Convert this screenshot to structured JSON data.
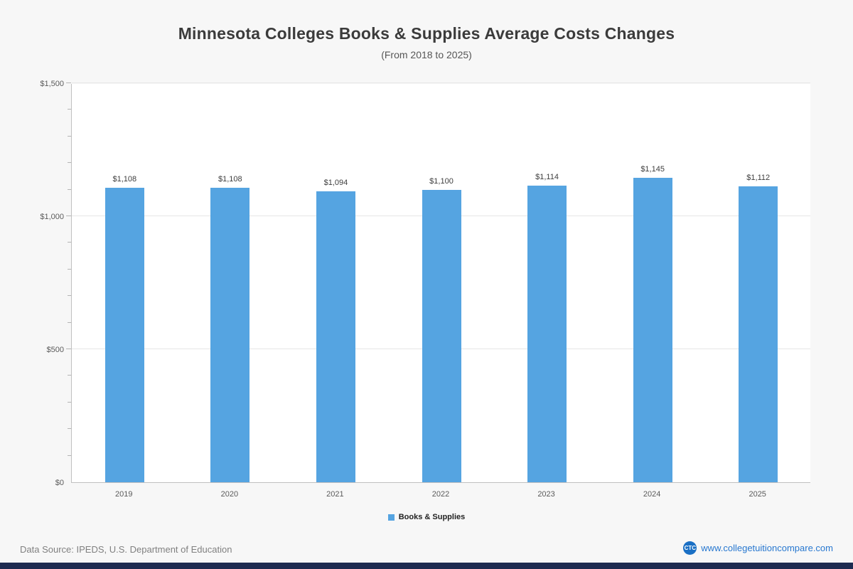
{
  "chart_data": {
    "type": "bar",
    "title": "Minnesota Colleges  Books & Supplies Average Costs Changes",
    "subtitle": "(From 2018 to 2025)",
    "categories": [
      "2019",
      "2020",
      "2021",
      "2022",
      "2023",
      "2024",
      "2025"
    ],
    "series": [
      {
        "name": "Books & Supplies",
        "values": [
          1108,
          1108,
          1094,
          1100,
          1114,
          1145,
          1112
        ],
        "value_labels": [
          "$1,108",
          "$1,108",
          "$1,094",
          "$1,100",
          "$1,114",
          "$1,145",
          "$1,112"
        ]
      }
    ],
    "ylim": [
      0,
      1500
    ],
    "yticks": [
      {
        "value": 0,
        "label": "$0"
      },
      {
        "value": 500,
        "label": "$500"
      },
      {
        "value": 1000,
        "label": "$1,000"
      },
      {
        "value": 1500,
        "label": "$1,500"
      }
    ],
    "minor_tick_interval": 100,
    "bar_color": "#55a4e1",
    "grid": true,
    "legend_position": "bottom"
  },
  "legend": {
    "label": "Books & Supplies",
    "color": "#55a4e1"
  },
  "footer": {
    "source": "Data Source: IPEDS, U.S. Department of Education",
    "logo_text": "CTC",
    "site": "www.collegetuitioncompare.com"
  }
}
